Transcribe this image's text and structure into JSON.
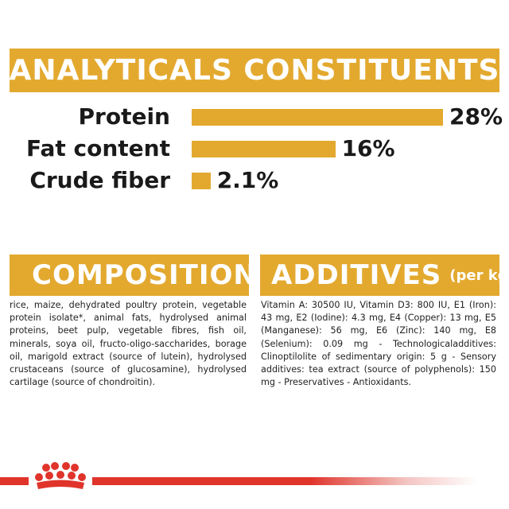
{
  "analytics": {
    "title": "ANALYTICALS CONSTITUENTS",
    "rows": [
      {
        "label": "Protein",
        "value": "28%",
        "percent": 28
      },
      {
        "label": "Fat content",
        "value": "16%",
        "percent": 16
      },
      {
        "label": "Crude fiber",
        "value": "2.1%",
        "percent": 2.1
      }
    ]
  },
  "composition": {
    "title": "COMPOSITION",
    "text": "rice, maize, dehydrated poultry protein, vegetable protein isolate*, animal fats, hydrolysed animal proteins, beet pulp, vegetable fibres, fish oil, minerals, soya oil, fructo-oligo-saccharides, borage oil, marigold extract (source of lutein), hydrolysed crustaceans (source of glucosamine), hydrolysed cartilage (source of chondroitin)."
  },
  "additives": {
    "title": "ADDITIVES",
    "unit": "(per kg)",
    "text": "Vitamin A: 30500 IU, Vitamin D3: 800 IU, E1 (Iron): 43 mg, E2 (Iodine): 4.3 mg, E4 (Copper): 13 mg, E5 (Manganese): 56 mg, E6 (Zinc): 140 mg, E8 (Selenium): 0.09 mg - Technologicaladditives: Clinoptilolite of sedimentary origin: 5 g - Sensory additives: tea extract (source of polyphenols): 150 mg - Preservatives - Antioxidants."
  },
  "colors": {
    "accent": "#e3a92f",
    "brand_red": "#e0342b"
  },
  "footer": {
    "logo_icon": "royal-canin-crown-icon"
  }
}
